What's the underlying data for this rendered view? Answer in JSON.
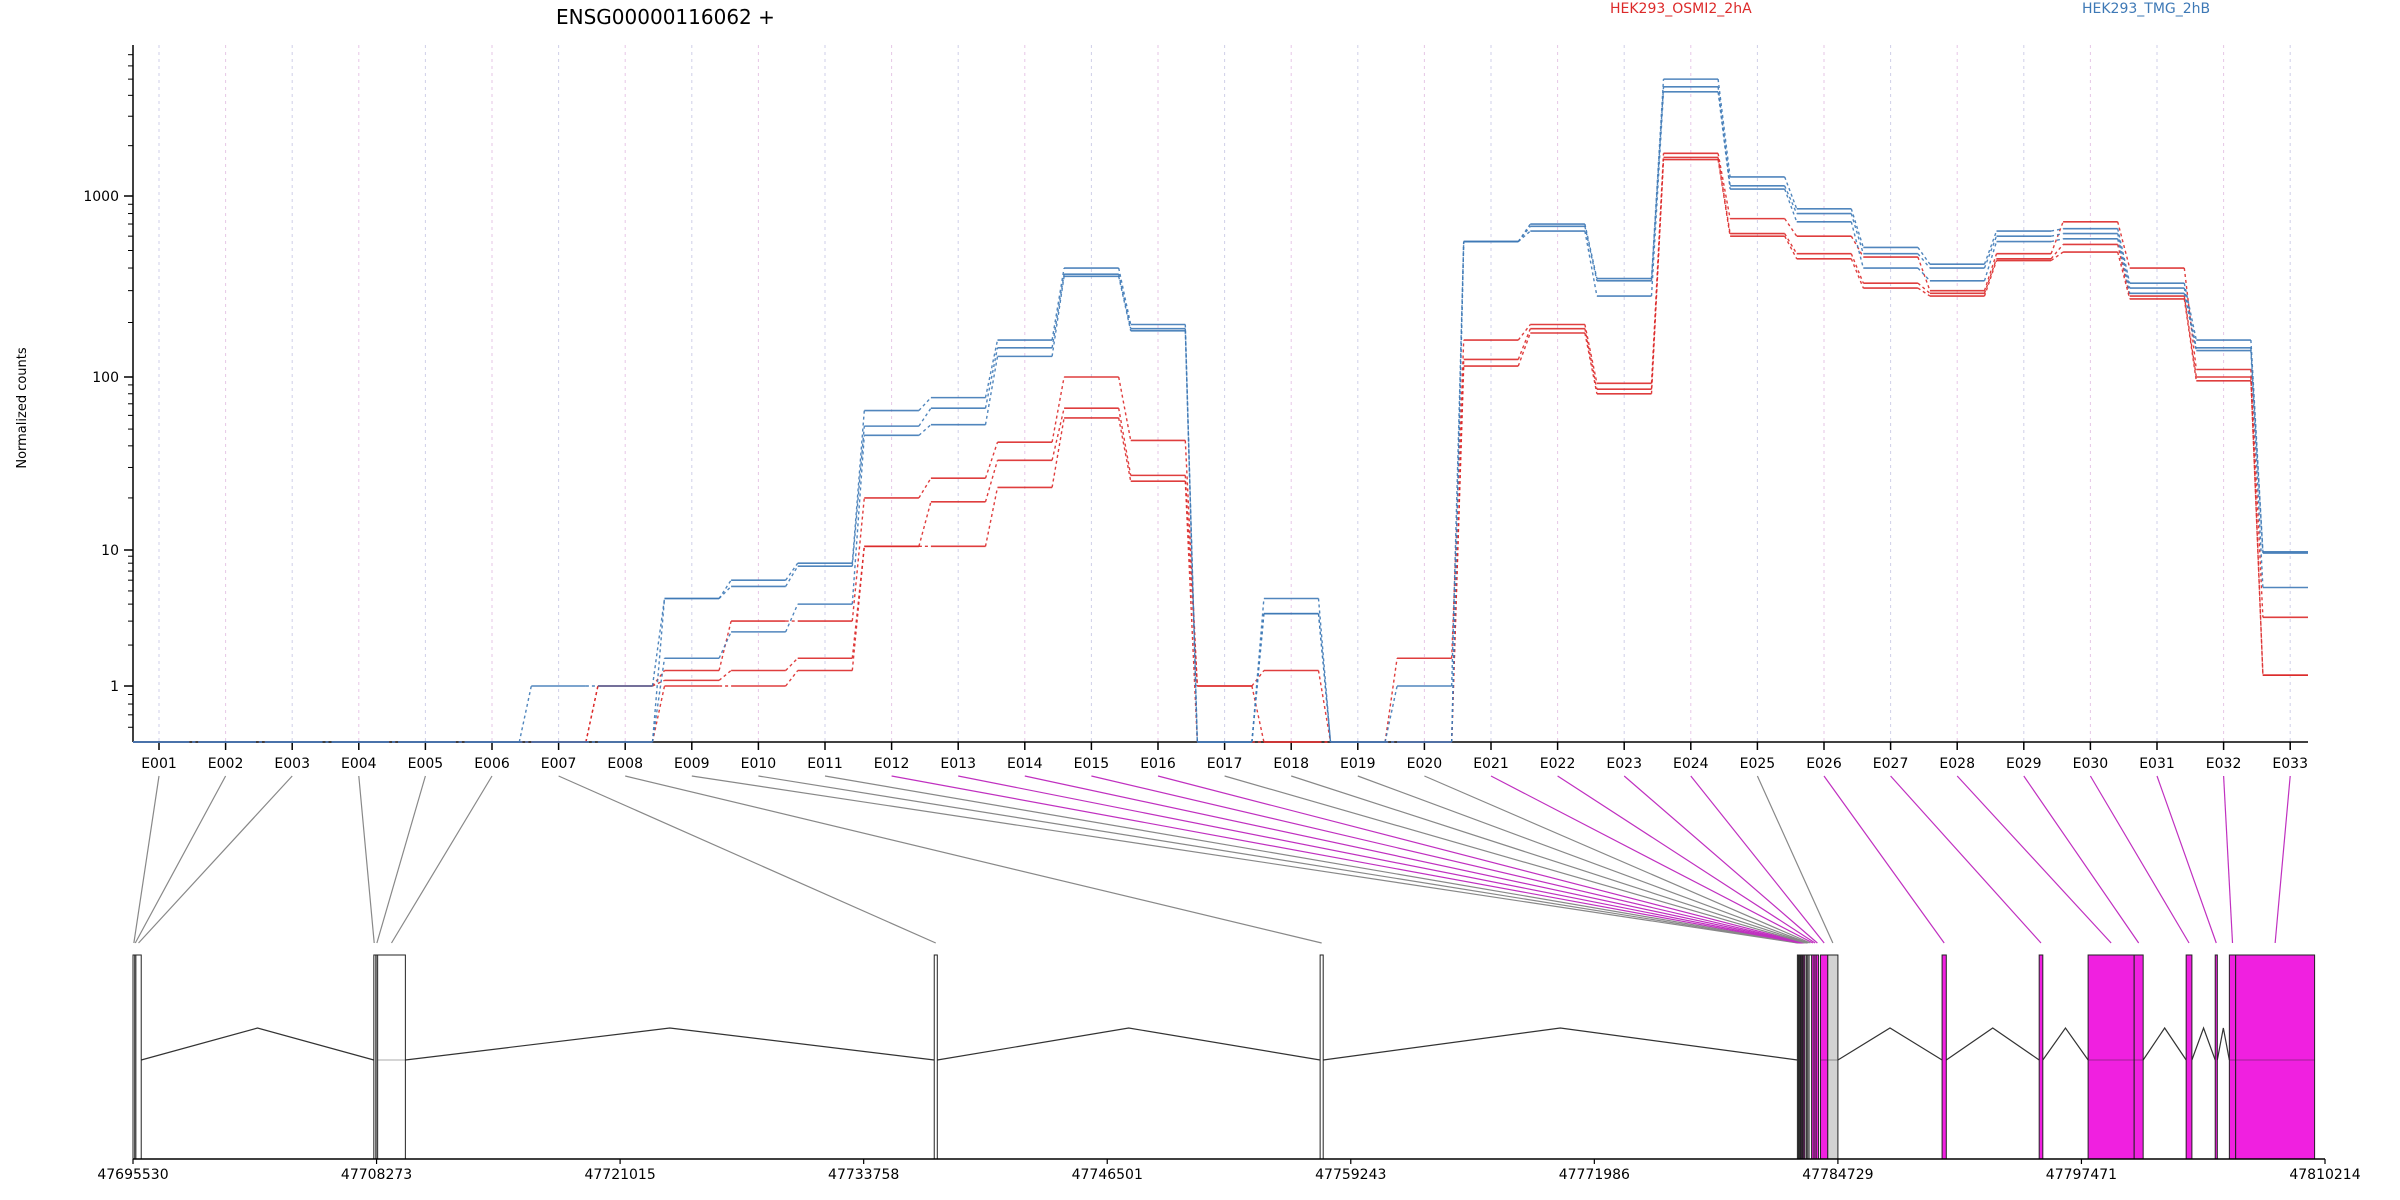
{
  "chart_data": {
    "type": "line",
    "title": "ENSG00000116062 +",
    "ylabel": "Normalized counts",
    "yscale": "log",
    "ylim": [
      0.5,
      8000
    ],
    "yticks": [
      1,
      10,
      100,
      1000
    ],
    "ytick_labels": [
      "1",
      "10",
      "100",
      "1000"
    ],
    "grid": "vertical dotted",
    "legend_placement": "top",
    "categories": [
      "E001",
      "E002",
      "E003",
      "E004",
      "E005",
      "E006",
      "E007",
      "E008",
      "E009",
      "E010",
      "E011",
      "E012",
      "E013",
      "E014",
      "E015",
      "E016",
      "E017",
      "E018",
      "E019",
      "E020",
      "E021",
      "E022",
      "E023",
      "E024",
      "E025",
      "E026",
      "E027",
      "E028",
      "E029",
      "E030",
      "E031",
      "E032",
      "E033"
    ],
    "series": [
      {
        "name": "HEK293_OSMI2_2hA",
        "color": "#dc2a2a",
        "values": [
          0.5,
          0.5,
          0.5,
          0.5,
          0.5,
          0.5,
          0.5,
          1.0,
          1.3,
          3.0,
          3.0,
          20,
          26,
          42,
          100,
          43,
          1.0,
          1.3,
          0.5,
          1.6,
          160,
          195,
          92,
          1800,
          750,
          600,
          460,
          300,
          480,
          720,
          400,
          110,
          3.2
        ]
      },
      {
        "name": "",
        "color": "#dc2a2a",
        "values": [
          0.5,
          0.5,
          0.5,
          0.5,
          0.5,
          0.5,
          0.5,
          1.0,
          1.1,
          1.3,
          1.6,
          10.5,
          19,
          33,
          66,
          27,
          1.0,
          0.5,
          0.5,
          0.5,
          125,
          185,
          85,
          1700,
          620,
          480,
          330,
          290,
          450,
          540,
          280,
          100,
          1.2
        ]
      },
      {
        "name": "",
        "color": "#dc2a2a",
        "values": [
          0.5,
          0.5,
          0.5,
          0.5,
          0.5,
          0.5,
          0.5,
          0.5,
          1.0,
          1.0,
          1.3,
          10.5,
          10.5,
          23,
          58,
          25,
          0.5,
          0.5,
          0.5,
          0.5,
          115,
          175,
          80,
          1650,
          600,
          450,
          310,
          280,
          440,
          490,
          270,
          95,
          1.2
        ]
      },
      {
        "name": "HEK293_TMG_2hB",
        "color": "#3e79b6",
        "values": [
          0.5,
          0.5,
          0.5,
          0.5,
          0.5,
          0.5,
          1.0,
          1.0,
          4.4,
          6.0,
          8.0,
          64,
          76,
          160,
          400,
          195,
          0.5,
          4.4,
          0.5,
          1.0,
          560,
          700,
          350,
          5000,
          1300,
          850,
          520,
          420,
          640,
          660,
          330,
          160,
          9.7
        ]
      },
      {
        "name": "",
        "color": "#3e79b6",
        "values": [
          0.5,
          0.5,
          0.5,
          0.5,
          0.5,
          0.5,
          0.5,
          0.5,
          4.4,
          5.4,
          7.6,
          52,
          66,
          145,
          370,
          185,
          0.5,
          3.4,
          0.5,
          0.5,
          560,
          680,
          340,
          4500,
          1150,
          800,
          480,
          400,
          600,
          620,
          310,
          145,
          9.5
        ]
      },
      {
        "name": "",
        "color": "#3e79b6",
        "values": [
          0.5,
          0.5,
          0.5,
          0.5,
          0.5,
          0.5,
          0.5,
          0.5,
          1.6,
          2.5,
          4.0,
          46,
          53,
          130,
          360,
          180,
          0.5,
          3.4,
          0.5,
          0.5,
          560,
          640,
          280,
          4200,
          1100,
          720,
          400,
          340,
          560,
          580,
          290,
          140,
          5.3
        ]
      }
    ],
    "gene_model": {
      "coordinate_labels": [
        "47695530",
        "47708273",
        "47721015",
        "47733758",
        "47746501",
        "47759243",
        "47771986",
        "47784729",
        "47797471",
        "47810214"
      ],
      "coordinate_values": [
        47695530,
        47708273,
        47721015,
        47733758,
        47746501,
        47759243,
        47771986,
        47784729,
        47797471,
        47810214
      ],
      "exon_fill": {
        "highlighted": "#f020e0",
        "normal": "#ffffff",
        "ambiguous": "#d3d3d3"
      },
      "exons": [
        {
          "id": "E001",
          "start": 47695530,
          "end": 47695620,
          "highlighted": false
        },
        {
          "id": "E002",
          "start": 47695620,
          "end": 47695680,
          "highlighted": false
        },
        {
          "id": "E003",
          "start": 47695680,
          "end": 47695960,
          "highlighted": false
        },
        {
          "id": "E004",
          "start": 47708130,
          "end": 47708170,
          "highlighted": false
        },
        {
          "id": "E005",
          "start": 47708250,
          "end": 47708330,
          "highlighted": false
        },
        {
          "id": "E006",
          "start": 47708330,
          "end": 47709780,
          "highlighted": false
        },
        {
          "id": "E007",
          "start": 47737450,
          "end": 47737610,
          "highlighted": false
        },
        {
          "id": "E008",
          "start": 47757640,
          "end": 47757800,
          "highlighted": false
        },
        {
          "id": "E009",
          "start": 47782610,
          "end": 47782660,
          "highlighted": false
        },
        {
          "id": "E010",
          "start": 47782660,
          "end": 47782700,
          "highlighted": false
        },
        {
          "id": "E011",
          "start": 47782700,
          "end": 47782750,
          "highlighted": false
        },
        {
          "id": "E012",
          "start": 47782750,
          "end": 47782790,
          "highlighted": true
        },
        {
          "id": "E013",
          "start": 47782790,
          "end": 47782840,
          "highlighted": true
        },
        {
          "id": "E014",
          "start": 47782840,
          "end": 47782880,
          "highlighted": true
        },
        {
          "id": "E015",
          "start": 47782880,
          "end": 47782940,
          "highlighted": true
        },
        {
          "id": "E016",
          "start": 47782940,
          "end": 47783000,
          "highlighted": true
        },
        {
          "id": "E017",
          "start": 47783000,
          "end": 47783080,
          "highlighted": false
        },
        {
          "id": "E018",
          "start": 47783080,
          "end": 47783150,
          "highlighted": false
        },
        {
          "id": "E019",
          "start": 47783150,
          "end": 47783220,
          "highlighted": false
        },
        {
          "id": "E020",
          "start": 47783220,
          "end": 47783360,
          "highlighted": false
        },
        {
          "id": "E021",
          "start": 47783360,
          "end": 47783480,
          "highlighted": true
        },
        {
          "id": "E022",
          "start": 47783480,
          "end": 47783590,
          "highlighted": true
        },
        {
          "id": "E023",
          "start": 47783590,
          "end": 47783720,
          "highlighted": true
        },
        {
          "id": "E024",
          "start": 47783820,
          "end": 47784200,
          "highlighted": true
        },
        {
          "id": "E025",
          "start": 47784200,
          "end": 47784730,
          "highlighted": false
        },
        {
          "id": "E026",
          "start": 47790180,
          "end": 47790400,
          "highlighted": true
        },
        {
          "id": "E027",
          "start": 47795260,
          "end": 47795450,
          "highlighted": true
        },
        {
          "id": "E028",
          "start": 47797820,
          "end": 47800230,
          "highlighted": true
        },
        {
          "id": "E029",
          "start": 47800230,
          "end": 47800700,
          "highlighted": true
        },
        {
          "id": "E030",
          "start": 47802950,
          "end": 47803250,
          "highlighted": true
        },
        {
          "id": "E031",
          "start": 47804470,
          "end": 47804580,
          "highlighted": true
        },
        {
          "id": "E032",
          "start": 47805210,
          "end": 47805540,
          "highlighted": true
        },
        {
          "id": "E033",
          "start": 47805540,
          "end": 47809670,
          "highlighted": true
        }
      ]
    }
  }
}
